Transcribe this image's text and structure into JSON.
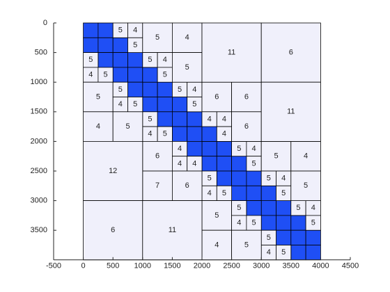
{
  "chart_data": {
    "type": "block-matrix",
    "xlim": [
      -500,
      4500
    ],
    "xticks": [
      -500,
      0,
      500,
      1000,
      1500,
      2000,
      2500,
      3000,
      3500,
      4000,
      4500
    ],
    "ylim": [
      0,
      4000
    ],
    "yticks": [
      0,
      500,
      1000,
      1500,
      2000,
      2500,
      3000,
      3500
    ],
    "y_reversed": true,
    "full_color": "#1f4ff5",
    "lowrank_color": "#f0f0fb",
    "blocks": [
      {
        "row": 0,
        "col": 0,
        "size": 250
      },
      {
        "row": 0,
        "col": 250,
        "size": 250
      },
      {
        "row": 250,
        "col": 0,
        "size": 250
      },
      {
        "row": 250,
        "col": 250,
        "size": 250
      },
      {
        "row": 250,
        "col": 500,
        "size": 250
      },
      {
        "row": 500,
        "col": 250,
        "size": 250
      },
      {
        "row": 500,
        "col": 500,
        "size": 250
      },
      {
        "row": 500,
        "col": 750,
        "size": 250
      },
      {
        "row": 750,
        "col": 500,
        "size": 250
      },
      {
        "row": 750,
        "col": 750,
        "size": 250
      },
      {
        "row": 1000,
        "col": 1000,
        "size": 250
      },
      {
        "row": 1000,
        "col": 1250,
        "size": 250
      },
      {
        "row": 1250,
        "col": 1000,
        "size": 250
      },
      {
        "row": 1250,
        "col": 1250,
        "size": 250
      },
      {
        "row": 1250,
        "col": 1500,
        "size": 250
      },
      {
        "row": 1500,
        "col": 1250,
        "size": 250
      },
      {
        "row": 1500,
        "col": 1500,
        "size": 250
      },
      {
        "row": 1500,
        "col": 1750,
        "size": 250
      },
      {
        "row": 1750,
        "col": 1500,
        "size": 250
      },
      {
        "row": 1750,
        "col": 1750,
        "size": 250
      },
      {
        "row": 2000,
        "col": 2000,
        "size": 250
      },
      {
        "row": 2000,
        "col": 2250,
        "size": 250
      },
      {
        "row": 2250,
        "col": 2000,
        "size": 250
      },
      {
        "row": 2250,
        "col": 2250,
        "size": 250
      },
      {
        "row": 2250,
        "col": 2500,
        "size": 250
      },
      {
        "row": 2500,
        "col": 2250,
        "size": 250
      },
      {
        "row": 2500,
        "col": 2500,
        "size": 250
      },
      {
        "row": 2500,
        "col": 2750,
        "size": 250
      },
      {
        "row": 2750,
        "col": 2500,
        "size": 250
      },
      {
        "row": 2750,
        "col": 2750,
        "size": 250
      },
      {
        "row": 3000,
        "col": 3000,
        "size": 250
      },
      {
        "row": 3000,
        "col": 3250,
        "size": 250
      },
      {
        "row": 3250,
        "col": 3000,
        "size": 250
      },
      {
        "row": 3250,
        "col": 3250,
        "size": 250
      },
      {
        "row": 3250,
        "col": 3500,
        "size": 250
      },
      {
        "row": 3500,
        "col": 3250,
        "size": 250
      },
      {
        "row": 3500,
        "col": 3500,
        "size": 250
      },
      {
        "row": 3500,
        "col": 3750,
        "size": 250
      },
      {
        "row": 3750,
        "col": 3500,
        "size": 250
      },
      {
        "row": 3750,
        "col": 3750,
        "size": 250
      },
      {
        "row": 750,
        "col": 1000,
        "size": 250
      },
      {
        "row": 1000,
        "col": 750,
        "size": 250
      },
      {
        "row": 1750,
        "col": 2000,
        "size": 250
      },
      {
        "row": 2000,
        "col": 1750,
        "size": 250
      },
      {
        "row": 2750,
        "col": 3000,
        "size": 250
      },
      {
        "row": 3000,
        "col": 2750,
        "size": 250
      },
      {
        "row": 0,
        "col": 500,
        "size": 250,
        "rank": 5
      },
      {
        "row": 0,
        "col": 750,
        "size": 250,
        "rank": 4
      },
      {
        "row": 250,
        "col": 750,
        "size": 250,
        "rank": 5
      },
      {
        "row": 500,
        "col": 0,
        "size": 250,
        "rank": 5
      },
      {
        "row": 750,
        "col": 0,
        "size": 250,
        "rank": 4
      },
      {
        "row": 750,
        "col": 250,
        "size": 250,
        "rank": 5
      },
      {
        "row": 1000,
        "col": 1500,
        "size": 250,
        "rank": 5
      },
      {
        "row": 1000,
        "col": 1750,
        "size": 250,
        "rank": 4
      },
      {
        "row": 1250,
        "col": 1750,
        "size": 250,
        "rank": 5
      },
      {
        "row": 1500,
        "col": 1000,
        "size": 250,
        "rank": 5
      },
      {
        "row": 1750,
        "col": 1000,
        "size": 250,
        "rank": 4
      },
      {
        "row": 1750,
        "col": 1250,
        "size": 250,
        "rank": 5
      },
      {
        "row": 2000,
        "col": 2500,
        "size": 250,
        "rank": 5
      },
      {
        "row": 2000,
        "col": 2750,
        "size": 250,
        "rank": 4
      },
      {
        "row": 2250,
        "col": 2750,
        "size": 250,
        "rank": 5
      },
      {
        "row": 2500,
        "col": 2000,
        "size": 250,
        "rank": 5
      },
      {
        "row": 2750,
        "col": 2000,
        "size": 250,
        "rank": 4
      },
      {
        "row": 2750,
        "col": 2250,
        "size": 250,
        "rank": 5
      },
      {
        "row": 3000,
        "col": 3500,
        "size": 250,
        "rank": 5
      },
      {
        "row": 3000,
        "col": 3750,
        "size": 250,
        "rank": 4
      },
      {
        "row": 3250,
        "col": 3750,
        "size": 250,
        "rank": 5
      },
      {
        "row": 3500,
        "col": 3000,
        "size": 250,
        "rank": 5
      },
      {
        "row": 3750,
        "col": 3000,
        "size": 250,
        "rank": 4
      },
      {
        "row": 3750,
        "col": 3250,
        "size": 250,
        "rank": 5
      },
      {
        "row": 0,
        "col": 1000,
        "size": 500,
        "rank": 5
      },
      {
        "row": 0,
        "col": 1500,
        "size": 500,
        "rank": 4
      },
      {
        "row": 500,
        "col": 1000,
        "size": 250,
        "rank": 5
      },
      {
        "row": 500,
        "col": 1250,
        "size": 250,
        "rank": 4
      },
      {
        "row": 750,
        "col": 1250,
        "size": 250,
        "rank": 5
      },
      {
        "row": 500,
        "col": 1500,
        "size": 500,
        "rank": 5
      },
      {
        "row": 1000,
        "col": 0,
        "size": 500,
        "rank": 5
      },
      {
        "row": 1000,
        "col": 500,
        "size": 250,
        "rank": 5
      },
      {
        "row": 1250,
        "col": 500,
        "size": 250,
        "rank": 4
      },
      {
        "row": 1250,
        "col": 750,
        "size": 250,
        "rank": 5
      },
      {
        "row": 1500,
        "col": 0,
        "size": 500,
        "rank": 4
      },
      {
        "row": 1500,
        "col": 500,
        "size": 500,
        "rank": 5
      },
      {
        "row": 1000,
        "col": 2000,
        "size": 500,
        "rank": 6
      },
      {
        "row": 1000,
        "col": 2500,
        "size": 500,
        "rank": 6
      },
      {
        "row": 1500,
        "col": 2000,
        "size": 250,
        "rank": 4
      },
      {
        "row": 1500,
        "col": 2250,
        "size": 250,
        "rank": 4
      },
      {
        "row": 1750,
        "col": 2250,
        "size": 250,
        "rank": 4
      },
      {
        "row": 1500,
        "col": 2500,
        "size": 500,
        "rank": 6
      },
      {
        "row": 2000,
        "col": 1000,
        "size": 500,
        "rank": 6
      },
      {
        "row": 2000,
        "col": 1500,
        "size": 250,
        "rank": 4
      },
      {
        "row": 2250,
        "col": 1500,
        "size": 250,
        "rank": 4
      },
      {
        "row": 2250,
        "col": 1750,
        "size": 250,
        "rank": 4
      },
      {
        "row": 2500,
        "col": 1000,
        "size": 500,
        "rank": 7
      },
      {
        "row": 2500,
        "col": 1500,
        "size": 500,
        "rank": 6
      },
      {
        "row": 2000,
        "col": 3000,
        "size": 500,
        "rank": 5
      },
      {
        "row": 2000,
        "col": 3500,
        "size": 500,
        "rank": 4
      },
      {
        "row": 2500,
        "col": 3000,
        "size": 250,
        "rank": 5
      },
      {
        "row": 2500,
        "col": 3250,
        "size": 250,
        "rank": 4
      },
      {
        "row": 2750,
        "col": 3250,
        "size": 250,
        "rank": 5
      },
      {
        "row": 2500,
        "col": 3500,
        "size": 500,
        "rank": 5
      },
      {
        "row": 3000,
        "col": 2000,
        "size": 500,
        "rank": 5
      },
      {
        "row": 3000,
        "col": 2500,
        "size": 250,
        "rank": 5
      },
      {
        "row": 3250,
        "col": 2500,
        "size": 250,
        "rank": 4
      },
      {
        "row": 3250,
        "col": 2750,
        "size": 250,
        "rank": 5
      },
      {
        "row": 3500,
        "col": 2000,
        "size": 500,
        "rank": 4
      },
      {
        "row": 3500,
        "col": 2500,
        "size": 500,
        "rank": 5
      },
      {
        "row": 0,
        "col": 2000,
        "size": 1000,
        "rank": 11
      },
      {
        "row": 0,
        "col": 3000,
        "size": 1000,
        "rank": 6
      },
      {
        "row": 1000,
        "col": 3000,
        "size": 1000,
        "rank": 11
      },
      {
        "row": 2000,
        "col": 0,
        "size": 1000,
        "rank": 12
      },
      {
        "row": 3000,
        "col": 0,
        "size": 1000,
        "rank": 6
      },
      {
        "row": 3000,
        "col": 1000,
        "size": 1000,
        "rank": 11
      }
    ]
  }
}
